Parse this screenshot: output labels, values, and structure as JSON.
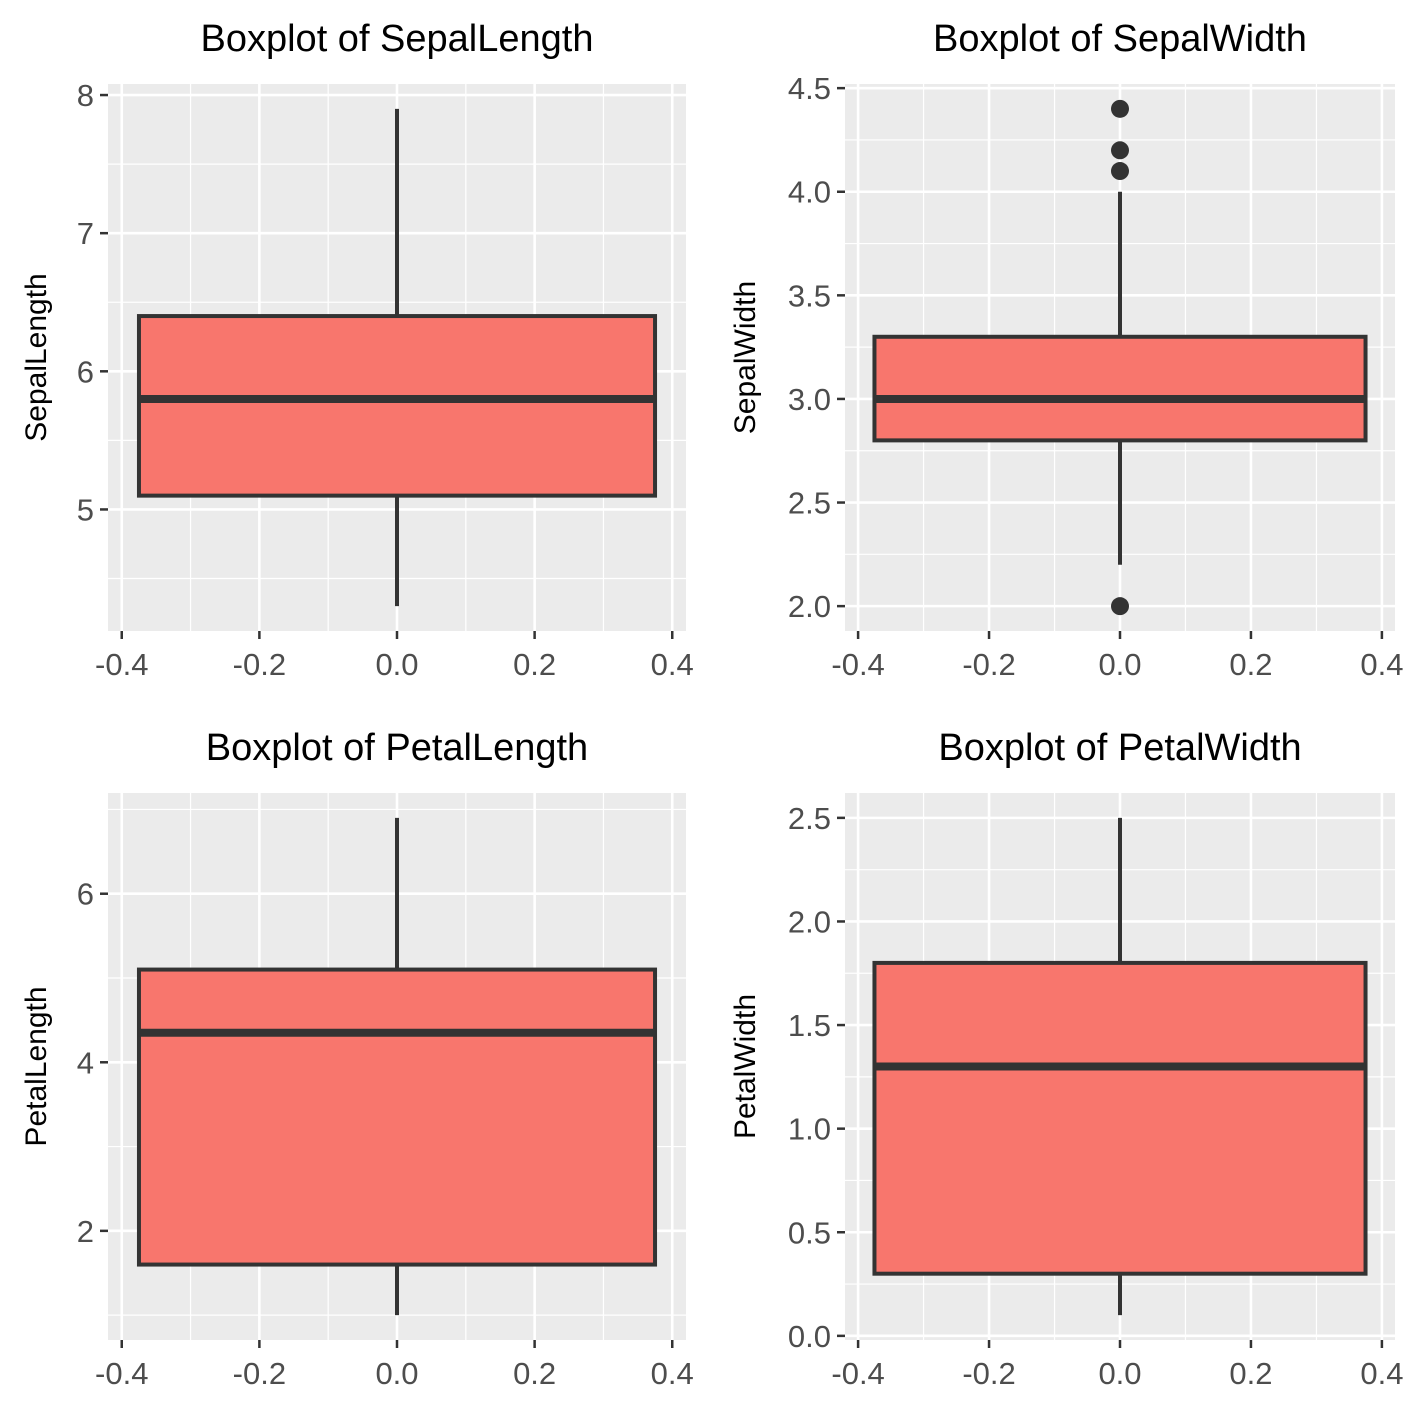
{
  "colors": {
    "panel_background": "#EBEBEB",
    "grid": "#FFFFFF",
    "box_fill": "#F8766D",
    "box_outline": "#333333",
    "tick": "#333333",
    "tick_label": "#4D4D4D"
  },
  "chart_data": [
    {
      "type": "boxplot",
      "title": "Boxplot of SepalLength",
      "ylabel": "SepalLength",
      "xlabel": "",
      "x_ticks": [
        "-0.4",
        "-0.2",
        "0.0",
        "0.2",
        "0.4"
      ],
      "y_ticks": [
        "5",
        "6",
        "7",
        "8"
      ],
      "xlim": [
        -0.42,
        0.42
      ],
      "ylim": [
        4.12,
        8.08
      ],
      "grid": true,
      "box": {
        "x_center": 0.0,
        "x_from": -0.375,
        "x_to": 0.375,
        "whisker_low": 4.3,
        "q1": 5.1,
        "median": 5.8,
        "q3": 6.4,
        "whisker_high": 7.9,
        "outliers": []
      }
    },
    {
      "type": "boxplot",
      "title": "Boxplot of SepalWidth",
      "ylabel": "SepalWidth",
      "xlabel": "",
      "x_ticks": [
        "-0.4",
        "-0.2",
        "0.0",
        "0.2",
        "0.4"
      ],
      "y_ticks": [
        "2.0",
        "2.5",
        "3.0",
        "3.5",
        "4.0",
        "4.5"
      ],
      "xlim": [
        -0.42,
        0.42
      ],
      "ylim": [
        1.88,
        4.52
      ],
      "grid": true,
      "box": {
        "x_center": 0.0,
        "x_from": -0.375,
        "x_to": 0.375,
        "whisker_low": 2.2,
        "q1": 2.8,
        "median": 3.0,
        "q3": 3.3,
        "whisker_high": 4.0,
        "outliers": [
          4.4,
          4.2,
          4.1,
          2.0
        ]
      }
    },
    {
      "type": "boxplot",
      "title": "Boxplot of PetalLength",
      "ylabel": "PetalLength",
      "xlabel": "",
      "x_ticks": [
        "-0.4",
        "-0.2",
        "0.0",
        "0.2",
        "0.4"
      ],
      "y_ticks": [
        "2",
        "4",
        "6"
      ],
      "xlim": [
        -0.42,
        0.42
      ],
      "ylim": [
        0.705,
        7.195
      ],
      "grid": true,
      "box": {
        "x_center": 0.0,
        "x_from": -0.375,
        "x_to": 0.375,
        "whisker_low": 1.0,
        "q1": 1.6,
        "median": 4.35,
        "q3": 5.1,
        "whisker_high": 6.9,
        "outliers": []
      }
    },
    {
      "type": "boxplot",
      "title": "Boxplot of PetalWidth",
      "ylabel": "PetalWidth",
      "xlabel": "",
      "x_ticks": [
        "-0.4",
        "-0.2",
        "0.0",
        "0.2",
        "0.4"
      ],
      "y_ticks": [
        "0.0",
        "0.5",
        "1.0",
        "1.5",
        "2.0",
        "2.5"
      ],
      "xlim": [
        -0.42,
        0.42
      ],
      "ylim": [
        -0.02,
        2.62
      ],
      "grid": true,
      "box": {
        "x_center": 0.0,
        "x_from": -0.375,
        "x_to": 0.375,
        "whisker_low": 0.1,
        "q1": 0.3,
        "median": 1.3,
        "q3": 1.8,
        "whisker_high": 2.5,
        "outliers": []
      }
    }
  ]
}
